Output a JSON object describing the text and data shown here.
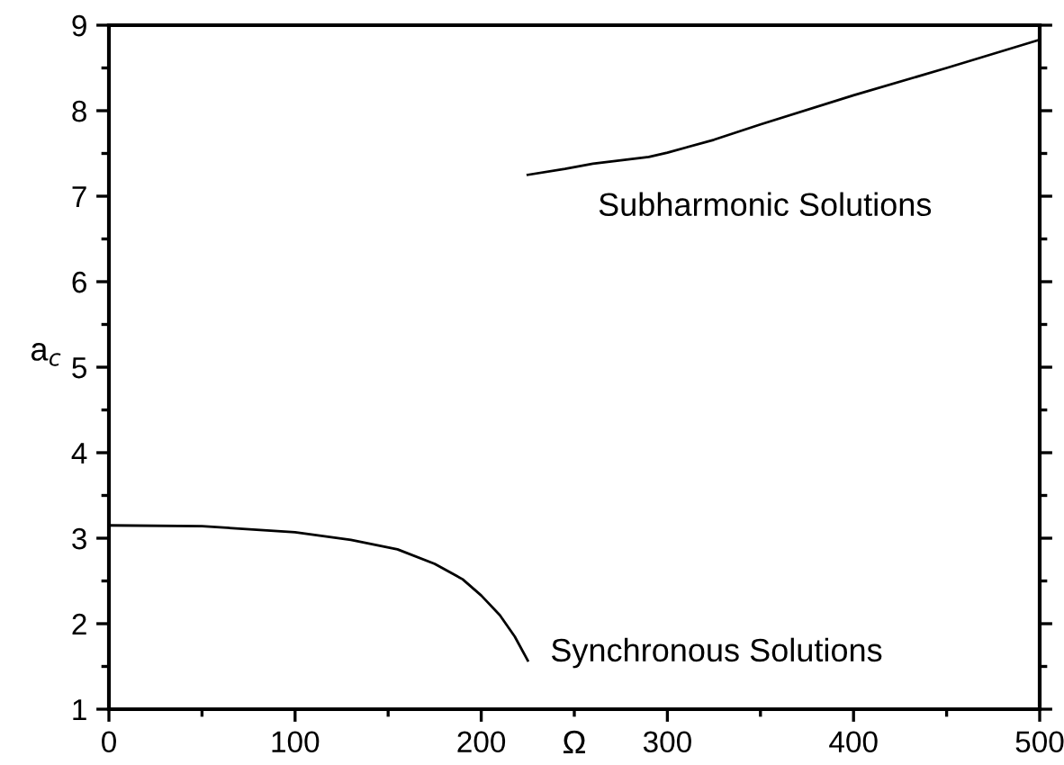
{
  "chart_data": {
    "type": "line",
    "xlabel": "Ω",
    "ylabel": "a$_{c}$",
    "xlim": [
      0,
      500
    ],
    "ylim": [
      1,
      9
    ],
    "xticks": [
      0,
      100,
      200,
      300,
      400,
      500
    ],
    "yticks": [
      1,
      2,
      3,
      4,
      5,
      6,
      7,
      8,
      9
    ],
    "grid": false,
    "legend": false,
    "marker": "none",
    "line_style": "solid",
    "series": [
      {
        "name": "Synchronous Solutions",
        "color": "#000000",
        "x": [
          0,
          50,
          100,
          130,
          155,
          175,
          190,
          200,
          210,
          218,
          225
        ],
        "values": [
          3.15,
          3.14,
          3.07,
          2.98,
          2.87,
          2.7,
          2.52,
          2.33,
          2.1,
          1.85,
          1.57
        ]
      },
      {
        "name": "Subharmonic Solutions",
        "color": "#000000",
        "x": [
          225,
          245,
          260,
          275,
          290,
          300,
          325,
          350,
          400,
          450,
          500
        ],
        "values": [
          7.25,
          7.32,
          7.38,
          7.42,
          7.46,
          7.51,
          7.66,
          7.84,
          8.18,
          8.5,
          8.83
        ]
      }
    ]
  }
}
